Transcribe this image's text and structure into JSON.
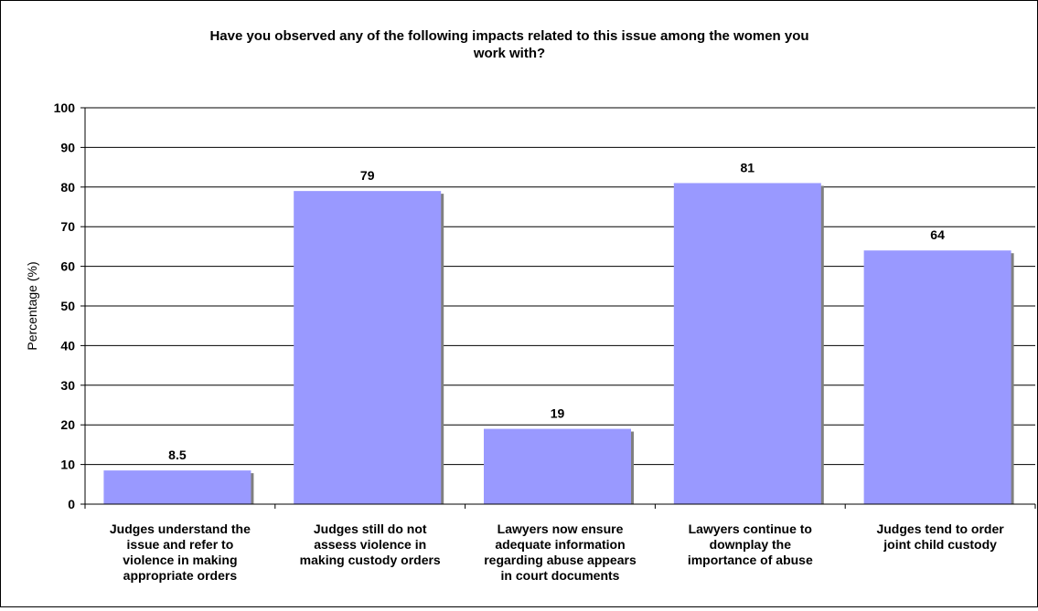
{
  "chart_data": {
    "type": "bar",
    "title_lines": [
      "Have you observed any of the following impacts related to this issue among the women you",
      "work with?"
    ],
    "ylabel": "Percentage (%)",
    "ylim": [
      0,
      100
    ],
    "yticks": [
      0,
      10,
      20,
      30,
      40,
      50,
      60,
      70,
      80,
      90,
      100
    ],
    "grid": true,
    "categories": [
      [
        "Judges understand the",
        "issue and refer to",
        "violence in making",
        "appropriate orders"
      ],
      [
        "Judges still do not",
        "assess violence in",
        "making custody orders"
      ],
      [
        "Lawyers now ensure",
        "adequate information",
        "regarding abuse appears",
        "in court documents"
      ],
      [
        "Lawyers continue to",
        "downplay the",
        "importance of abuse"
      ],
      [
        "Judges tend to  order",
        "joint child custody"
      ]
    ],
    "values": [
      8.5,
      79,
      19,
      81,
      64
    ],
    "data_labels": [
      "8.5",
      "79",
      "19",
      "81",
      "64"
    ],
    "bar_color": "#9999ff",
    "bar_shadow_color": "#808080"
  }
}
